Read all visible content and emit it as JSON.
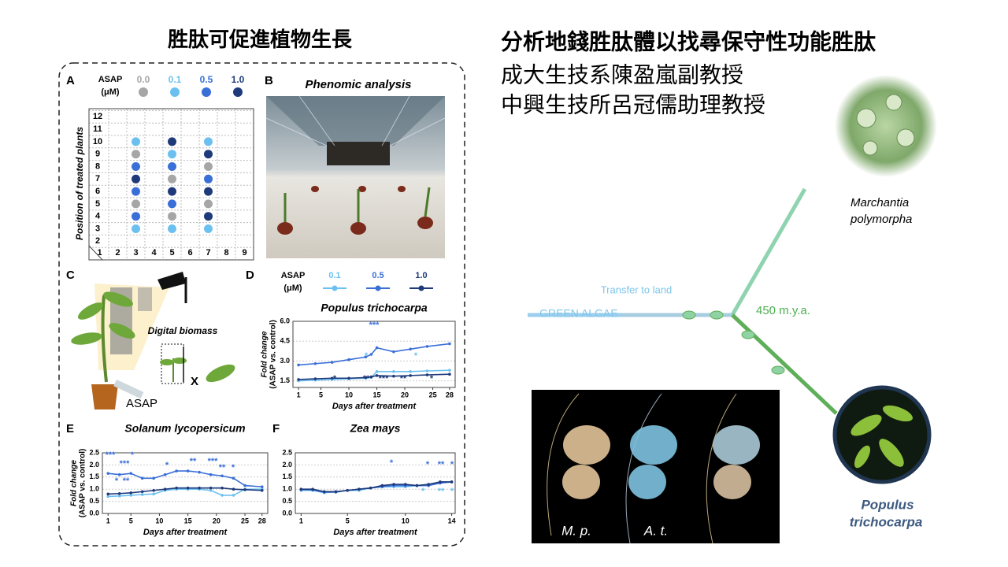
{
  "left_title": "胜肽可促進植物生長",
  "right_title": {
    "line1": "分析地錢胜肽體以找尋保守性功能胜肽",
    "line2": "成大生技系陳盈嵐副教授",
    "line3": "中興生技所呂冠儒助理教授"
  },
  "panel_a": {
    "label": "A",
    "legend_title": [
      "ASAP",
      "(μM)"
    ],
    "y_label": "Position of treated plants",
    "xticks": [
      1,
      2,
      3,
      4,
      5,
      6,
      7,
      8,
      9
    ],
    "yticks": [
      1,
      2,
      3,
      4,
      5,
      6,
      7,
      8,
      9,
      10,
      11,
      12
    ],
    "doses": [
      {
        "label": "0.0",
        "color": "#a6a6a6",
        "x": [
          3,
          3,
          5,
          5,
          7,
          7
        ],
        "y": [
          9,
          5,
          7,
          4,
          8,
          5
        ]
      },
      {
        "label": "0.1",
        "color": "#6cc0f0",
        "x": [
          3,
          3,
          5,
          5,
          7,
          7
        ],
        "y": [
          10,
          3,
          9,
          3,
          10,
          3
        ]
      },
      {
        "label": "0.5",
        "color": "#3a6fd8",
        "x": [
          3,
          3,
          3,
          5,
          5,
          7
        ],
        "y": [
          8,
          6,
          4,
          8,
          5,
          7
        ]
      },
      {
        "label": "1.0",
        "color": "#1f3a7a",
        "x": [
          3,
          5,
          5,
          7,
          7,
          7
        ],
        "y": [
          7,
          10,
          6,
          9,
          6,
          4
        ]
      }
    ]
  },
  "panel_b": {
    "label": "B",
    "title": "Phenomic analysis"
  },
  "panel_c": {
    "label": "C",
    "digital_biomass": "Digital biomass",
    "x_mark": "X",
    "asap": "ASAP"
  },
  "panel_d": {
    "label": "D",
    "legend_title": [
      "ASAP",
      "(μM)"
    ],
    "title": "Populus trichocarpa",
    "y_label": [
      "Fold change",
      "(ASAP vs. control)"
    ],
    "x_label": "Days after treatment",
    "xlim": [
      0,
      29
    ],
    "ylim": [
      1.0,
      6.0
    ],
    "xticks": [
      1,
      5,
      10,
      15,
      20,
      25,
      28
    ],
    "yticks": [
      1.5,
      {
        "value": 3.0,
        "label": "3.0"
      },
      4.5,
      {
        "value": 6.0,
        "label": "6.0"
      }
    ],
    "x": [
      1,
      4,
      7,
      10,
      13,
      14,
      15,
      18,
      21,
      24,
      28
    ],
    "series": [
      {
        "name": "0.1",
        "color": "#6cc0f0",
        "values": [
          1.5,
          1.55,
          1.6,
          1.65,
          1.7,
          1.75,
          2.2,
          2.2,
          2.2,
          2.25,
          2.3
        ]
      },
      {
        "name": "0.5",
        "color": "#3a6fd8",
        "values": [
          2.7,
          2.8,
          2.9,
          3.1,
          3.3,
          3.5,
          4.0,
          3.7,
          3.9,
          4.1,
          4.3
        ]
      },
      {
        "name": "1.0",
        "color": "#1f3a7a",
        "values": [
          1.6,
          1.65,
          1.7,
          1.7,
          1.75,
          1.8,
          1.9,
          1.85,
          1.9,
          1.95,
          2.0
        ]
      }
    ],
    "annotations": [
      "***",
      "*",
      "*",
      "*",
      "**",
      "***",
      "**",
      "*"
    ]
  },
  "panel_e": {
    "label": "E",
    "title": "Solanum lycopersicum",
    "y_label": [
      "Fold change",
      "(ASAP vs. control)"
    ],
    "x_label": "Days after treatment",
    "xlim": [
      0,
      29
    ],
    "ylim": [
      0,
      2.5
    ],
    "xticks": [
      1,
      5,
      10,
      15,
      20,
      25,
      28
    ],
    "yticks": [
      {
        "value": 0,
        "label": "0.0"
      },
      0.5,
      {
        "value": 1,
        "label": "1.0"
      },
      1.5,
      {
        "value": 2,
        "label": "2.0"
      },
      2.5
    ],
    "x": [
      1,
      3,
      5,
      7,
      9,
      11,
      13,
      15,
      17,
      19,
      21,
      23,
      25,
      28
    ],
    "series": [
      {
        "name": "0.1",
        "color": "#6cc0f0",
        "values": [
          0.7,
          0.72,
          0.75,
          0.78,
          0.8,
          0.95,
          1.0,
          1.0,
          1.0,
          0.95,
          0.75,
          0.75,
          1.0,
          1.0
        ]
      },
      {
        "name": "0.5",
        "color": "#3a6fd8",
        "values": [
          1.65,
          1.6,
          1.65,
          1.45,
          1.45,
          1.6,
          1.75,
          1.75,
          1.7,
          1.6,
          1.55,
          1.45,
          1.15,
          1.1
        ]
      },
      {
        "name": "1.0",
        "color": "#1f3a7a",
        "values": [
          0.8,
          0.82,
          0.85,
          0.9,
          0.95,
          1.0,
          1.05,
          1.05,
          1.05,
          1.05,
          1.05,
          1.0,
          0.98,
          0.95
        ]
      }
    ],
    "annotations": [
      "***",
      "***",
      "*",
      "*",
      "**",
      "*",
      "**",
      "***",
      "**",
      "*"
    ]
  },
  "panel_f": {
    "label": "F",
    "title": "Zea mays",
    "x_label": "Days after treatment",
    "xlim": [
      0.5,
      14.3
    ],
    "ylim": [
      0,
      2.5
    ],
    "xticks": [
      1,
      5,
      10,
      14
    ],
    "yticks": [
      {
        "value": 0,
        "label": "0.0"
      },
      0.5,
      {
        "value": 1,
        "label": "1.0"
      },
      1.5,
      {
        "value": 2,
        "label": "2.0"
      },
      2.5
    ],
    "x": [
      1,
      2,
      3,
      4,
      5,
      6,
      7,
      8,
      9,
      10,
      11,
      12,
      13,
      14
    ],
    "series": [
      {
        "name": "0.1",
        "color": "#6cc0f0",
        "values": [
          0.95,
          0.95,
          0.85,
          0.9,
          0.95,
          0.95,
          1.05,
          1.1,
          1.1,
          1.1,
          1.15,
          1.15,
          1.3,
          1.3
        ]
      },
      {
        "name": "0.5",
        "color": "#3a6fd8",
        "values": [
          0.98,
          0.97,
          0.88,
          0.88,
          0.95,
          1.0,
          1.05,
          1.1,
          1.15,
          1.15,
          1.15,
          1.15,
          1.25,
          1.3
        ]
      },
      {
        "name": "1.0",
        "color": "#1f3a7a",
        "values": [
          1.0,
          1.0,
          0.9,
          0.9,
          0.95,
          1.0,
          1.05,
          1.15,
          1.2,
          1.2,
          1.15,
          1.2,
          1.3,
          1.3
        ]
      }
    ],
    "annotations": [
      "*",
      "*",
      "**",
      "*",
      "*",
      "**",
      "*"
    ]
  },
  "tree": {
    "transfer": "Transfer to land",
    "green_algae": "GREEN ALGAE",
    "age": "450 m.y.a.",
    "marchantia": [
      "Marchantia",
      "polymorpha"
    ],
    "populus": [
      "Populus",
      "trichocarpa"
    ],
    "structure_labels": [
      "M. p.",
      "A. t."
    ]
  }
}
